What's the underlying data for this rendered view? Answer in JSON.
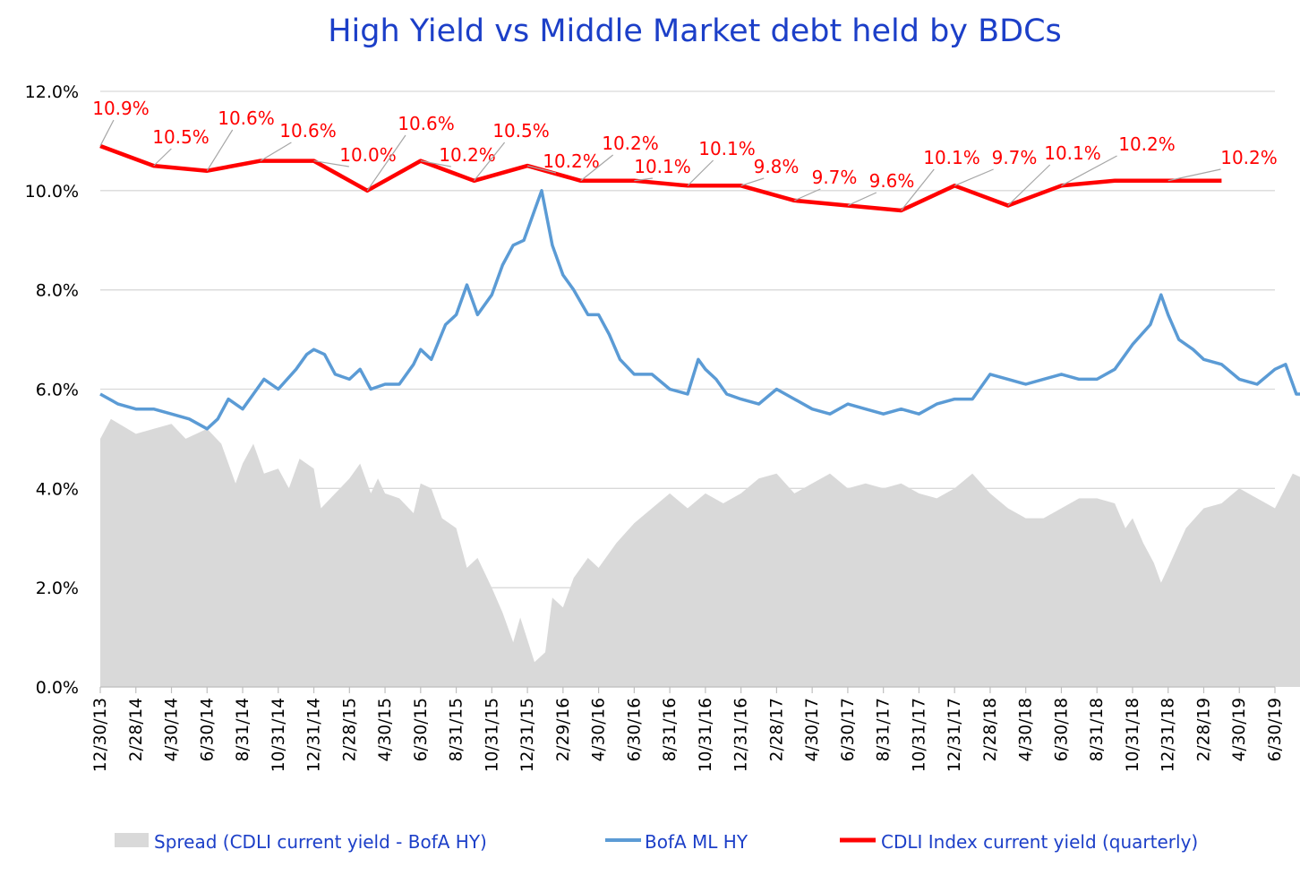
{
  "chart_data": {
    "type": "line",
    "title": "High Yield  vs  Middle Market debt held by BDCs",
    "xlabel": "",
    "ylabel": "",
    "ylim": [
      0,
      12
    ],
    "y_ticks": [
      "0.0%",
      "2.0%",
      "4.0%",
      "6.0%",
      "8.0%",
      "10.0%",
      "12.0%"
    ],
    "x_ticks": [
      "12/30/13",
      "2/28/14",
      "4/30/14",
      "6/30/14",
      "8/31/14",
      "10/31/14",
      "12/31/14",
      "2/28/15",
      "4/30/15",
      "6/30/15",
      "8/31/15",
      "10/31/15",
      "12/31/15",
      "2/29/16",
      "4/30/16",
      "6/30/16",
      "8/31/16",
      "10/31/16",
      "12/31/16",
      "2/28/17",
      "4/30/17",
      "6/30/17",
      "8/31/17",
      "10/31/17",
      "12/31/17",
      "2/28/18",
      "4/30/18",
      "6/30/18",
      "8/31/18",
      "10/31/18",
      "12/31/18",
      "2/28/19",
      "4/30/19",
      "6/30/19"
    ],
    "grid": true,
    "legend_position": "bottom",
    "series": [
      {
        "name": "Spread (CDLI current yield - BofA HY)",
        "type": "area",
        "color": "#d9d9d9",
        "points": [
          [
            0,
            5.0
          ],
          [
            0.3,
            5.4
          ],
          [
            1,
            5.1
          ],
          [
            2,
            5.3
          ],
          [
            2.4,
            5.0
          ],
          [
            3,
            5.2
          ],
          [
            3.4,
            4.9
          ],
          [
            3.8,
            4.1
          ],
          [
            4,
            4.5
          ],
          [
            4.3,
            4.9
          ],
          [
            4.6,
            4.3
          ],
          [
            5,
            4.4
          ],
          [
            5.3,
            4.0
          ],
          [
            5.6,
            4.6
          ],
          [
            6,
            4.4
          ],
          [
            6.2,
            3.6
          ],
          [
            6.6,
            3.9
          ],
          [
            7,
            4.2
          ],
          [
            7.3,
            4.5
          ],
          [
            7.6,
            3.9
          ],
          [
            7.8,
            4.2
          ],
          [
            8,
            3.9
          ],
          [
            8.4,
            3.8
          ],
          [
            8.8,
            3.5
          ],
          [
            9,
            4.1
          ],
          [
            9.3,
            4.0
          ],
          [
            9.6,
            3.4
          ],
          [
            10,
            3.2
          ],
          [
            10.3,
            2.4
          ],
          [
            10.6,
            2.6
          ],
          [
            11,
            2.0
          ],
          [
            11.3,
            1.5
          ],
          [
            11.6,
            0.9
          ],
          [
            11.8,
            1.4
          ],
          [
            12.2,
            0.5
          ],
          [
            12.5,
            0.7
          ],
          [
            12.7,
            1.8
          ],
          [
            13,
            1.6
          ],
          [
            13.3,
            2.2
          ],
          [
            13.7,
            2.6
          ],
          [
            14,
            2.4
          ],
          [
            14.5,
            2.9
          ],
          [
            15,
            3.3
          ],
          [
            15.5,
            3.6
          ],
          [
            16,
            3.9
          ],
          [
            16.5,
            3.6
          ],
          [
            17,
            3.9
          ],
          [
            17.5,
            3.7
          ],
          [
            18,
            3.9
          ],
          [
            18.5,
            4.2
          ],
          [
            19,
            4.3
          ],
          [
            19.5,
            3.9
          ],
          [
            20,
            4.1
          ],
          [
            20.5,
            4.3
          ],
          [
            21,
            4.0
          ],
          [
            21.5,
            4.1
          ],
          [
            22,
            4.0
          ],
          [
            22.5,
            4.1
          ],
          [
            23,
            3.9
          ],
          [
            23.5,
            3.8
          ],
          [
            24,
            4.0
          ],
          [
            24.5,
            4.3
          ],
          [
            25,
            3.9
          ],
          [
            25.5,
            3.6
          ],
          [
            26,
            3.4
          ],
          [
            26.5,
            3.4
          ],
          [
            27,
            3.6
          ],
          [
            27.5,
            3.8
          ],
          [
            28,
            3.8
          ],
          [
            28.5,
            3.7
          ],
          [
            28.8,
            3.2
          ],
          [
            29,
            3.4
          ],
          [
            29.3,
            2.9
          ],
          [
            29.6,
            2.5
          ],
          [
            29.8,
            2.1
          ],
          [
            30,
            2.4
          ],
          [
            30.5,
            3.2
          ],
          [
            31,
            3.6
          ],
          [
            31.5,
            3.7
          ],
          [
            32,
            4.0
          ],
          [
            32.5,
            3.8
          ],
          [
            33,
            3.6
          ],
          [
            33.5,
            4.3
          ],
          [
            33.8,
            4.2
          ]
        ]
      },
      {
        "name": "BofA ML HY",
        "type": "line",
        "color": "#5b9bd5",
        "points": [
          [
            0,
            5.9
          ],
          [
            0.5,
            5.7
          ],
          [
            1,
            5.6
          ],
          [
            1.5,
            5.6
          ],
          [
            2,
            5.5
          ],
          [
            2.5,
            5.4
          ],
          [
            3,
            5.2
          ],
          [
            3.3,
            5.4
          ],
          [
            3.6,
            5.8
          ],
          [
            4,
            5.6
          ],
          [
            4.3,
            5.9
          ],
          [
            4.6,
            6.2
          ],
          [
            5,
            6.0
          ],
          [
            5.5,
            6.4
          ],
          [
            5.8,
            6.7
          ],
          [
            6,
            6.8
          ],
          [
            6.3,
            6.7
          ],
          [
            6.6,
            6.3
          ],
          [
            7,
            6.2
          ],
          [
            7.3,
            6.4
          ],
          [
            7.6,
            6.0
          ],
          [
            8,
            6.1
          ],
          [
            8.4,
            6.1
          ],
          [
            8.8,
            6.5
          ],
          [
            9,
            6.8
          ],
          [
            9.3,
            6.6
          ],
          [
            9.7,
            7.3
          ],
          [
            10,
            7.5
          ],
          [
            10.3,
            8.1
          ],
          [
            10.6,
            7.5
          ],
          [
            11,
            7.9
          ],
          [
            11.3,
            8.5
          ],
          [
            11.6,
            8.9
          ],
          [
            11.9,
            9.0
          ],
          [
            12.2,
            9.6
          ],
          [
            12.4,
            10.0
          ],
          [
            12.7,
            8.9
          ],
          [
            13,
            8.3
          ],
          [
            13.3,
            8.0
          ],
          [
            13.7,
            7.5
          ],
          [
            14,
            7.5
          ],
          [
            14.3,
            7.1
          ],
          [
            14.6,
            6.6
          ],
          [
            15,
            6.3
          ],
          [
            15.5,
            6.3
          ],
          [
            16,
            6.0
          ],
          [
            16.5,
            5.9
          ],
          [
            16.8,
            6.6
          ],
          [
            17,
            6.4
          ],
          [
            17.3,
            6.2
          ],
          [
            17.6,
            5.9
          ],
          [
            18,
            5.8
          ],
          [
            18.5,
            5.7
          ],
          [
            19,
            6.0
          ],
          [
            19.5,
            5.8
          ],
          [
            20,
            5.6
          ],
          [
            20.5,
            5.5
          ],
          [
            21,
            5.7
          ],
          [
            21.5,
            5.6
          ],
          [
            22,
            5.5
          ],
          [
            22.5,
            5.6
          ],
          [
            23,
            5.5
          ],
          [
            23.5,
            5.7
          ],
          [
            24,
            5.8
          ],
          [
            24.5,
            5.8
          ],
          [
            25,
            6.3
          ],
          [
            25.5,
            6.2
          ],
          [
            26,
            6.1
          ],
          [
            26.5,
            6.2
          ],
          [
            27,
            6.3
          ],
          [
            27.5,
            6.2
          ],
          [
            28,
            6.2
          ],
          [
            28.5,
            6.4
          ],
          [
            29,
            6.9
          ],
          [
            29.5,
            7.3
          ],
          [
            29.8,
            7.9
          ],
          [
            30,
            7.5
          ],
          [
            30.3,
            7.0
          ],
          [
            30.7,
            6.8
          ],
          [
            31,
            6.6
          ],
          [
            31.5,
            6.5
          ],
          [
            32,
            6.2
          ],
          [
            32.5,
            6.1
          ],
          [
            33,
            6.4
          ],
          [
            33.3,
            6.5
          ],
          [
            33.6,
            5.9
          ],
          [
            33.8,
            5.9
          ]
        ]
      },
      {
        "name": "CDLI Index current yield (quarterly)",
        "type": "line",
        "color": "#ff0000",
        "points": [
          [
            0,
            10.9
          ],
          [
            1.5,
            10.5
          ],
          [
            3,
            10.4
          ],
          [
            4.5,
            10.6
          ],
          [
            6,
            10.6
          ],
          [
            7.5,
            10.0
          ],
          [
            9,
            10.6
          ],
          [
            10.5,
            10.2
          ],
          [
            12,
            10.5
          ],
          [
            13.5,
            10.2
          ],
          [
            15,
            10.2
          ],
          [
            16.5,
            10.1
          ],
          [
            18,
            10.1
          ],
          [
            19.5,
            9.8
          ],
          [
            21,
            9.7
          ],
          [
            22.5,
            9.6
          ],
          [
            24,
            10.1
          ],
          [
            25.5,
            9.7
          ],
          [
            27,
            10.1
          ],
          [
            28.5,
            10.2
          ],
          [
            30,
            10.2
          ],
          [
            31.5,
            10.2
          ]
        ],
        "labels": [
          "10.9%",
          "10.5%",
          "10.6%",
          "10.6%",
          "10.0%",
          "10.6%",
          "10.2%",
          "10.5%",
          "10.2%",
          "10.2%",
          "10.1%",
          "10.1%",
          "9.8%",
          "9.7%",
          "9.6%",
          "10.1%",
          "9.7%",
          "10.1%",
          "10.2%",
          "10.2%"
        ]
      }
    ]
  },
  "legend": [
    {
      "label": "Spread (CDLI current yield - BofA HY)",
      "symbol": "area"
    },
    {
      "label": "BofA ML HY",
      "symbol": "line"
    },
    {
      "label": "CDLI Index current yield (quarterly)",
      "symbol": "line"
    }
  ]
}
